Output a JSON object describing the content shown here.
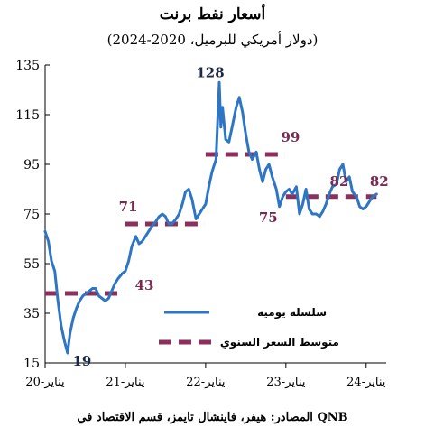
{
  "title": "أسعار نفط برنت",
  "subtitle": "(دولار أمريكي للبرميل، 2020-2024)",
  "source": "المصادر: هيفر، فاينشال تايمز، قسم الاقتصاد في QNB",
  "colors": {
    "daily": "#2e75c4",
    "average": "#8b2f5d",
    "label_dark": "#1a2a45",
    "label_avg": "#7a2a52"
  },
  "chart_data": {
    "type": "line",
    "title": "أسعار نفط برنت",
    "subtitle": "(دولار أمريكي للبرميل، 2020-2024)",
    "ylim": [
      15,
      135
    ],
    "yticks": [
      15,
      35,
      55,
      75,
      95,
      115,
      135
    ],
    "ytick_labels": [
      "15",
      "35",
      "55",
      "75",
      "95",
      "115",
      "135"
    ],
    "xlim": [
      2020.0,
      2024.25
    ],
    "xticks": [
      2020,
      2021,
      2022,
      2023,
      2024
    ],
    "xtick_labels": [
      "يناير-20",
      "يناير-21",
      "يناير-22",
      "يناير-23",
      "يناير-24"
    ],
    "grid": false,
    "legend": {
      "position": "center-right"
    },
    "series": [
      {
        "name": "سلسلة يومية",
        "style": "line",
        "points": [
          [
            2020.0,
            68
          ],
          [
            2020.04,
            64
          ],
          [
            2020.08,
            56
          ],
          [
            2020.12,
            52
          ],
          [
            2020.16,
            40
          ],
          [
            2020.2,
            30
          ],
          [
            2020.24,
            24
          ],
          [
            2020.28,
            19
          ],
          [
            2020.31,
            27
          ],
          [
            2020.35,
            33
          ],
          [
            2020.39,
            37
          ],
          [
            2020.43,
            40
          ],
          [
            2020.47,
            42
          ],
          [
            2020.51,
            43
          ],
          [
            2020.55,
            44
          ],
          [
            2020.59,
            45
          ],
          [
            2020.63,
            45
          ],
          [
            2020.67,
            42
          ],
          [
            2020.71,
            41
          ],
          [
            2020.75,
            40
          ],
          [
            2020.79,
            41
          ],
          [
            2020.83,
            44
          ],
          [
            2020.87,
            47
          ],
          [
            2020.91,
            49
          ],
          [
            2020.96,
            51
          ],
          [
            2021.0,
            52
          ],
          [
            2021.04,
            56
          ],
          [
            2021.08,
            62
          ],
          [
            2021.13,
            66
          ],
          [
            2021.17,
            63
          ],
          [
            2021.21,
            64
          ],
          [
            2021.25,
            66
          ],
          [
            2021.29,
            68
          ],
          [
            2021.33,
            70
          ],
          [
            2021.38,
            72
          ],
          [
            2021.42,
            74
          ],
          [
            2021.46,
            75
          ],
          [
            2021.5,
            74
          ],
          [
            2021.54,
            71
          ],
          [
            2021.58,
            71
          ],
          [
            2021.63,
            73
          ],
          [
            2021.67,
            75
          ],
          [
            2021.71,
            79
          ],
          [
            2021.75,
            84
          ],
          [
            2021.79,
            85
          ],
          [
            2021.83,
            81
          ],
          [
            2021.88,
            73
          ],
          [
            2021.92,
            75
          ],
          [
            2021.96,
            77
          ],
          [
            2022.0,
            79
          ],
          [
            2022.04,
            86
          ],
          [
            2022.08,
            92
          ],
          [
            2022.13,
            97
          ],
          [
            2022.17,
            128
          ],
          [
            2022.19,
            110
          ],
          [
            2022.21,
            118
          ],
          [
            2022.25,
            105
          ],
          [
            2022.29,
            104
          ],
          [
            2022.33,
            110
          ],
          [
            2022.38,
            118
          ],
          [
            2022.42,
            122
          ],
          [
            2022.46,
            116
          ],
          [
            2022.5,
            107
          ],
          [
            2022.54,
            100
          ],
          [
            2022.58,
            97
          ],
          [
            2022.63,
            100
          ],
          [
            2022.67,
            93
          ],
          [
            2022.71,
            88
          ],
          [
            2022.75,
            93
          ],
          [
            2022.79,
            95
          ],
          [
            2022.83,
            90
          ],
          [
            2022.88,
            85
          ],
          [
            2022.92,
            78
          ],
          [
            2022.96,
            82
          ],
          [
            2023.0,
            84
          ],
          [
            2023.04,
            85
          ],
          [
            2023.08,
            83
          ],
          [
            2023.13,
            86
          ],
          [
            2023.17,
            75
          ],
          [
            2023.21,
            79
          ],
          [
            2023.25,
            85
          ],
          [
            2023.29,
            77
          ],
          [
            2023.33,
            75
          ],
          [
            2023.38,
            75
          ],
          [
            2023.42,
            74
          ],
          [
            2023.46,
            76
          ],
          [
            2023.5,
            79
          ],
          [
            2023.54,
            83
          ],
          [
            2023.58,
            86
          ],
          [
            2023.63,
            87
          ],
          [
            2023.67,
            93
          ],
          [
            2023.71,
            95
          ],
          [
            2023.75,
            88
          ],
          [
            2023.79,
            90
          ],
          [
            2023.83,
            84
          ],
          [
            2023.88,
            82
          ],
          [
            2023.92,
            78
          ],
          [
            2023.96,
            77
          ],
          [
            2024.0,
            78
          ],
          [
            2024.04,
            80
          ],
          [
            2024.08,
            82
          ],
          [
            2024.13,
            83
          ]
        ]
      },
      {
        "name": "متوسط السعر السنوي",
        "style": "dashed",
        "segments": [
          {
            "year": 2020,
            "x": [
              2020.0,
              2020.99
            ],
            "value": 43
          },
          {
            "year": 2021,
            "x": [
              2021.0,
              2021.99
            ],
            "value": 71
          },
          {
            "year": 2022,
            "x": [
              2022.0,
              2022.99
            ],
            "value": 99
          },
          {
            "year": 2023,
            "x": [
              2023.0,
              2023.99
            ],
            "value": 82
          },
          {
            "year": 2024,
            "x": [
              2024.0,
              2024.13
            ],
            "value": 82
          }
        ]
      }
    ],
    "annotations": [
      {
        "text": "19",
        "kind": "daily",
        "x": 2020.28,
        "y": 19
      },
      {
        "text": "128",
        "kind": "daily",
        "x": 2022.17,
        "y": 128
      },
      {
        "text": "43",
        "kind": "average",
        "x": 2020.99,
        "y": 43
      },
      {
        "text": "71",
        "kind": "average",
        "x": 2021.17,
        "y": 71
      },
      {
        "text": "75",
        "kind": "average",
        "x": 2022.78,
        "y": 75
      },
      {
        "text": "99",
        "kind": "average",
        "x": 2022.99,
        "y": 99
      },
      {
        "text": "82",
        "kind": "average",
        "x": 2023.71,
        "y": 82
      },
      {
        "text": "82",
        "kind": "average",
        "x": 2024.04,
        "y": 82
      }
    ]
  }
}
